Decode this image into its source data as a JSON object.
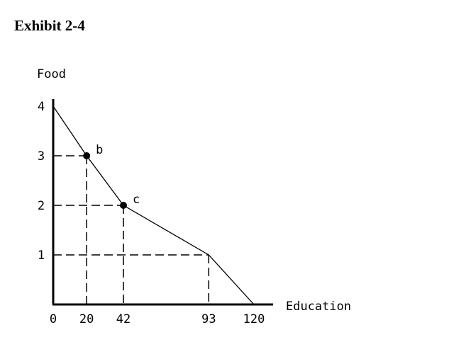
{
  "header": {
    "title": "Exhibit 2-4"
  },
  "chart_data": {
    "type": "line",
    "xlabel": "Education",
    "ylabel": "Food",
    "xlim": [
      0,
      120
    ],
    "ylim": [
      0,
      4
    ],
    "x_ticks": [
      "0",
      "20",
      "42",
      "93",
      "120"
    ],
    "y_ticks": [
      "1",
      "2",
      "3",
      "4"
    ],
    "series": [
      {
        "x": [
          0,
          20,
          42,
          93,
          120
        ],
        "y": [
          4,
          3,
          2,
          1,
          0
        ]
      }
    ],
    "marked_points": [
      {
        "label": "b",
        "x": 20,
        "y": 3
      },
      {
        "label": "c",
        "x": 42,
        "y": 2
      }
    ],
    "guide_points": [
      {
        "x": 20,
        "y": 3
      },
      {
        "x": 42,
        "y": 2
      },
      {
        "x": 93,
        "y": 1
      }
    ],
    "grid": false
  }
}
